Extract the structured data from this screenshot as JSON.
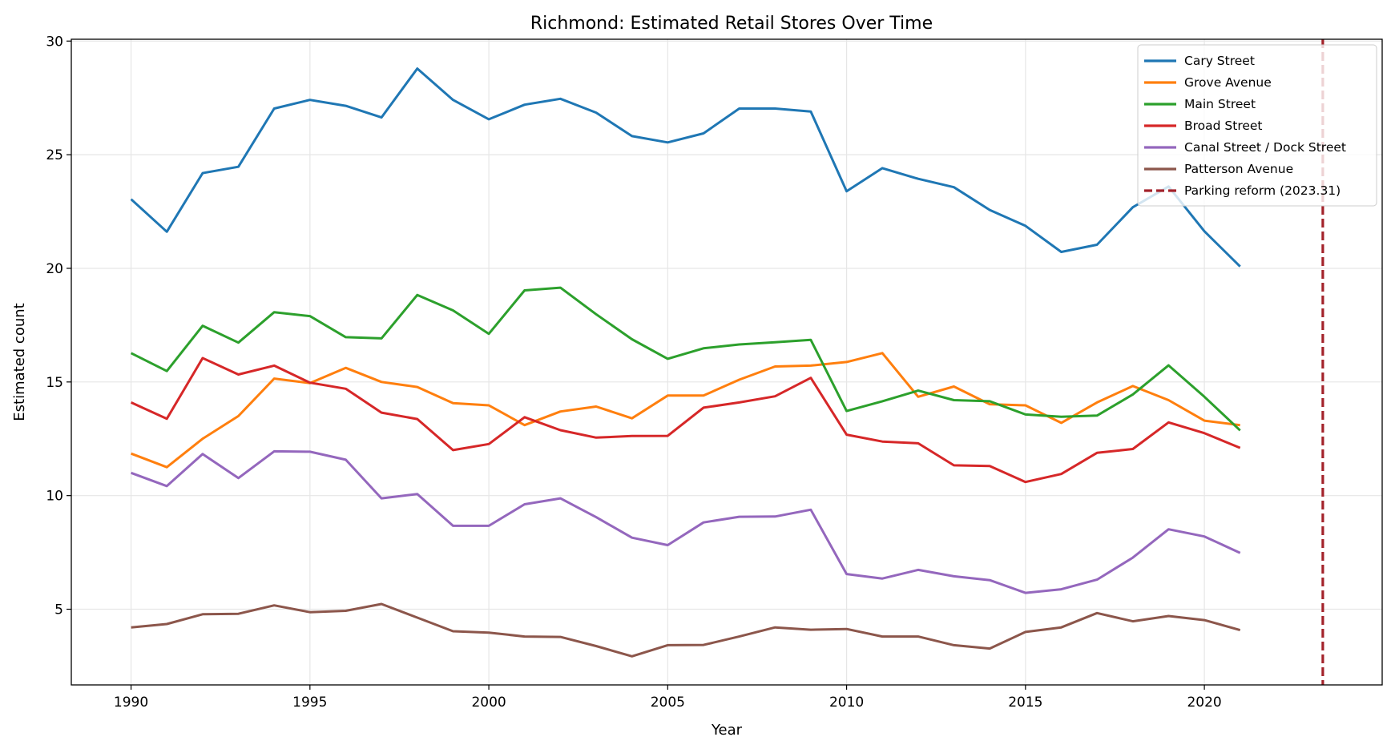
{
  "chart_data": {
    "type": "line",
    "title": "Richmond: Estimated Retail Stores Over Time",
    "xlabel": "Year",
    "ylabel": "Estimated count",
    "xlim": [
      1988.33,
      2024.97
    ],
    "ylim": [
      1.67,
      30.08
    ],
    "xticks": [
      1990,
      1995,
      2000,
      2005,
      2010,
      2015,
      2020
    ],
    "yticks": [
      5,
      10,
      15,
      20,
      25,
      30
    ],
    "grid": true,
    "legend_placement": "top-right",
    "x": [
      1990,
      1991,
      1992,
      1993,
      1994,
      1995,
      1996,
      1997,
      1998,
      1999,
      2000,
      2001,
      2002,
      2003,
      2004,
      2005,
      2006,
      2007,
      2008,
      2009,
      2010,
      2011,
      2012,
      2013,
      2014,
      2015,
      2016,
      2017,
      2018,
      2019,
      2020,
      2021
    ],
    "series": [
      {
        "name": "Cary Street",
        "color": "#1f77b4",
        "values": [
          23.04,
          21.61,
          24.19,
          24.47,
          27.03,
          27.41,
          27.15,
          26.64,
          28.79,
          27.41,
          26.56,
          27.2,
          27.46,
          26.85,
          25.82,
          25.54,
          25.94,
          27.03,
          27.03,
          26.9,
          23.39,
          24.41,
          23.94,
          23.57,
          22.57,
          21.87,
          20.72,
          21.04,
          22.69,
          23.6,
          21.63,
          20.08
        ]
      },
      {
        "name": "Grove Avenue",
        "color": "#ff7f0e",
        "values": [
          11.85,
          11.25,
          12.5,
          13.5,
          15.15,
          14.95,
          15.62,
          15.0,
          14.78,
          14.07,
          13.97,
          13.1,
          13.7,
          13.92,
          13.4,
          14.4,
          14.4,
          15.1,
          15.68,
          15.72,
          15.88,
          16.27,
          14.35,
          14.8,
          14.02,
          13.97,
          13.2,
          14.1,
          14.82,
          14.2,
          13.3,
          13.1
        ]
      },
      {
        "name": "Main Street",
        "color": "#2ca02c",
        "values": [
          16.27,
          15.48,
          17.47,
          16.73,
          18.07,
          17.9,
          16.97,
          16.92,
          18.83,
          18.15,
          17.12,
          19.03,
          19.15,
          17.98,
          16.88,
          16.02,
          16.48,
          16.65,
          16.75,
          16.85,
          13.72,
          14.15,
          14.62,
          14.2,
          14.15,
          13.57,
          13.47,
          13.52,
          14.45,
          15.73,
          14.35,
          12.87
        ]
      },
      {
        "name": "Broad Street",
        "color": "#d62728",
        "values": [
          14.1,
          13.38,
          16.05,
          15.33,
          15.72,
          14.97,
          14.7,
          13.65,
          13.37,
          12.0,
          12.27,
          13.45,
          12.88,
          12.55,
          12.62,
          12.63,
          13.87,
          14.1,
          14.37,
          15.18,
          12.68,
          12.38,
          12.3,
          11.33,
          11.3,
          10.6,
          10.95,
          11.88,
          12.05,
          13.22,
          12.75,
          12.1
        ]
      },
      {
        "name": "Canal Street / Dock Street",
        "color": "#9467bd",
        "values": [
          11.0,
          10.42,
          11.83,
          10.77,
          11.95,
          11.93,
          11.58,
          9.88,
          10.07,
          8.67,
          8.67,
          9.62,
          9.88,
          9.05,
          8.15,
          7.82,
          8.82,
          9.07,
          9.08,
          9.38,
          6.55,
          6.35,
          6.73,
          6.45,
          6.28,
          5.72,
          5.88,
          6.3,
          7.27,
          8.52,
          8.2,
          7.48
        ]
      },
      {
        "name": "Patterson Avenue",
        "color": "#8c564b",
        "values": [
          4.2,
          4.35,
          4.78,
          4.8,
          5.17,
          4.87,
          4.93,
          5.23,
          4.63,
          4.03,
          3.97,
          3.8,
          3.78,
          3.38,
          2.93,
          3.42,
          3.43,
          3.8,
          4.2,
          4.1,
          4.13,
          3.8,
          3.8,
          3.42,
          3.27,
          4.0,
          4.2,
          4.83,
          4.47,
          4.7,
          4.52,
          4.08
        ]
      }
    ],
    "vline": {
      "name": "Parking reform (2023.31)",
      "x": 2023.31,
      "color": "#a3222a",
      "style": "dashed"
    }
  }
}
